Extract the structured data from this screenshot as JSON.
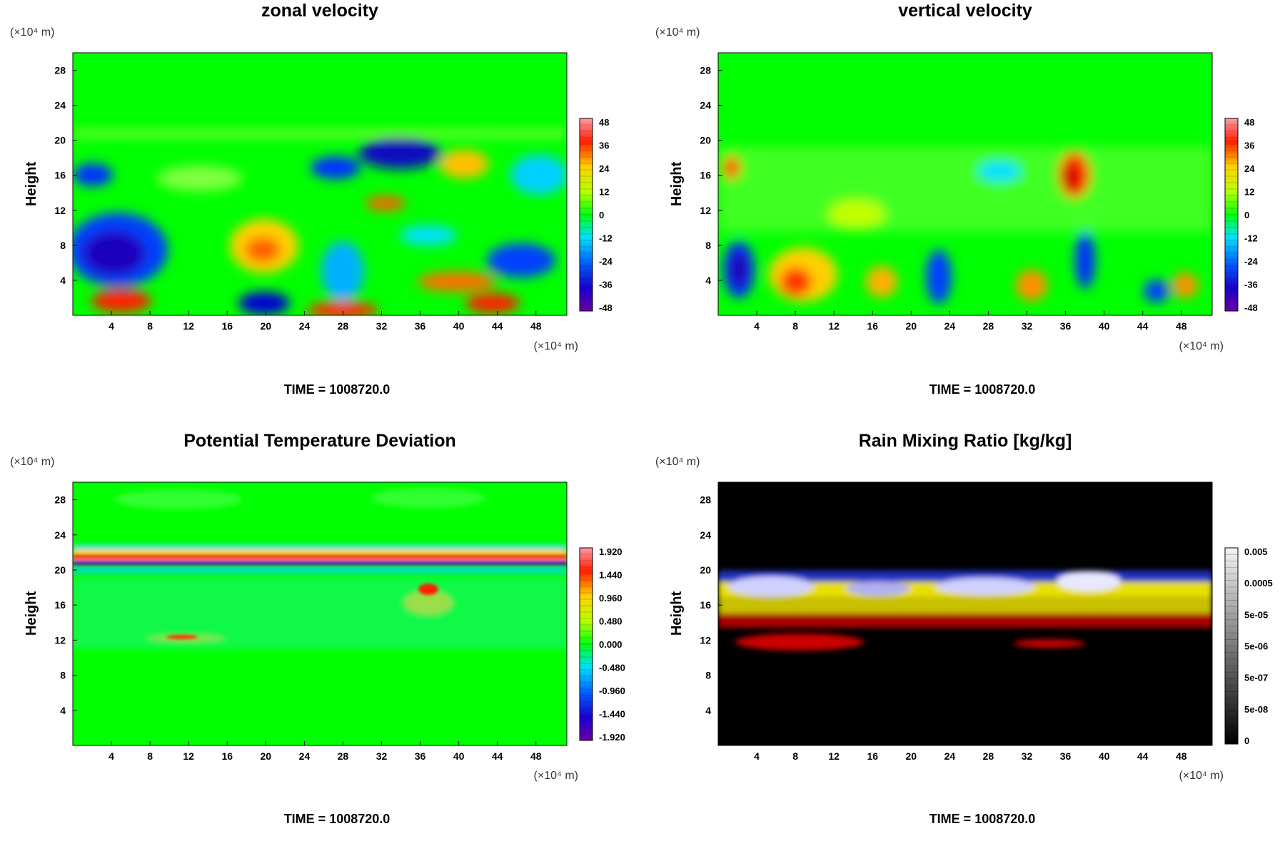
{
  "chart_data": [
    {
      "type": "heatmap",
      "title": "zonal velocity",
      "ylabel": "Height",
      "x_unit": "(×10⁴ m)",
      "y_unit": "(×10⁴ m)",
      "x_ticks": [
        "4",
        "8",
        "12",
        "16",
        "20",
        "24",
        "28",
        "32",
        "36",
        "40",
        "44",
        "48"
      ],
      "y_ticks": [
        "4",
        "8",
        "12",
        "16",
        "20",
        "24",
        "28"
      ],
      "xlim": [
        0,
        51.2
      ],
      "ylim": [
        0,
        30
      ],
      "colorbar": {
        "labels": [
          "48",
          "36",
          "24",
          "12",
          "0",
          "-12",
          "-24",
          "-36",
          "-48"
        ],
        "min": -48,
        "max": 48,
        "palette": "rainbow"
      },
      "time_label": "TIME = 1008720.0"
    },
    {
      "type": "heatmap",
      "title": "vertical velocity",
      "ylabel": "Height",
      "x_unit": "(×10⁴ m)",
      "y_unit": "(×10⁴ m)",
      "x_ticks": [
        "4",
        "8",
        "12",
        "16",
        "20",
        "24",
        "28",
        "32",
        "36",
        "40",
        "44",
        "48"
      ],
      "y_ticks": [
        "4",
        "8",
        "12",
        "16",
        "20",
        "24",
        "28"
      ],
      "xlim": [
        0,
        51.2
      ],
      "ylim": [
        0,
        30
      ],
      "colorbar": {
        "labels": [
          "48",
          "36",
          "24",
          "12",
          "0",
          "-12",
          "-24",
          "-36",
          "-48"
        ],
        "min": -48,
        "max": 48,
        "palette": "rainbow"
      },
      "time_label": "TIME = 1008720.0"
    },
    {
      "type": "heatmap",
      "title": "Potential Temperature Deviation",
      "ylabel": "Height",
      "x_unit": "(×10⁴ m)",
      "y_unit": "(×10⁴ m)",
      "x_ticks": [
        "4",
        "8",
        "12",
        "16",
        "20",
        "24",
        "28",
        "32",
        "36",
        "40",
        "44",
        "48"
      ],
      "y_ticks": [
        "4",
        "8",
        "12",
        "16",
        "20",
        "24",
        "28"
      ],
      "xlim": [
        0,
        51.2
      ],
      "ylim": [
        0,
        30
      ],
      "colorbar": {
        "labels": [
          "1.920",
          "1.440",
          "0.960",
          "0.480",
          "0.000",
          "-0.480",
          "-0.960",
          "-1.440",
          "-1.920"
        ],
        "min": -1.92,
        "max": 1.92,
        "palette": "rainbow"
      },
      "time_label": "TIME = 1008720.0"
    },
    {
      "type": "heatmap",
      "title": "Rain Mixing Ratio [kg/kg]",
      "ylabel": "Height",
      "x_unit": "(×10⁴ m)",
      "y_unit": "(×10⁴ m)",
      "x_ticks": [
        "4",
        "8",
        "12",
        "16",
        "20",
        "24",
        "28",
        "32",
        "36",
        "40",
        "44",
        "48"
      ],
      "y_ticks": [
        "4",
        "8",
        "12",
        "16",
        "20",
        "24",
        "28"
      ],
      "xlim": [
        0,
        51.2
      ],
      "ylim": [
        0,
        30
      ],
      "colorbar": {
        "labels": [
          "0.005",
          "0.0005",
          "5e-05",
          "5e-06",
          "5e-07",
          "5e-08",
          "0"
        ],
        "palette": "grayscale"
      },
      "time_label": "TIME = 1008720.0"
    }
  ]
}
